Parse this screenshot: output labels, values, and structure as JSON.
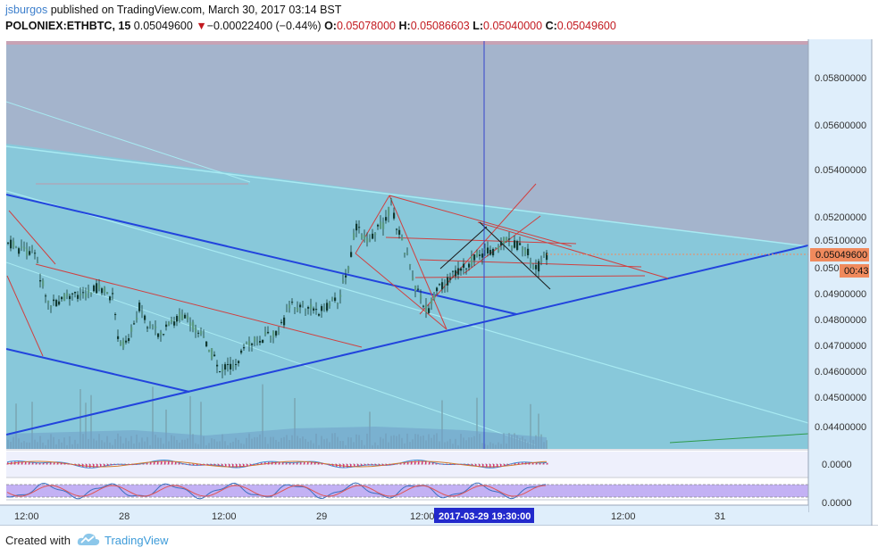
{
  "header": {
    "author": "jsburgos",
    "published_text": " published on TradingView.com, March 30, 2017 03:14 BST",
    "symbol": "POLONIEX:ETHBTC, 15",
    "last": "0.05049600",
    "change": "−0.00022400 (−0.44%)",
    "o_label": "O:",
    "o_value": "0.05078000",
    "h_label": "H:",
    "h_value": "0.05086603",
    "l_label": "L:",
    "l_value": "0.05040000",
    "c_label": "C:",
    "c_value": "0.05049600"
  },
  "price_axis": {
    "ticks": [
      "0.05800000",
      "0.05600000",
      "0.05400000",
      "0.05200000",
      "0.05100000",
      "0.04900000",
      "0.04800000",
      "0.04700000",
      "0.04600000",
      "0.04500000",
      "0.04400000"
    ],
    "partial_tick": "0.050",
    "last_price_label": "0.05049600",
    "countdown": "00:43",
    "osc1_tick": "0.0000",
    "osc2_tick": "0.0000"
  },
  "time_axis": {
    "labels": [
      "12:00",
      "28",
      "12:00",
      "29",
      "12:00",
      "12:00",
      "31"
    ],
    "cursor_label": "2017-03-29 19:30:00"
  },
  "footer": {
    "created_with": "Created with",
    "brand": "TradingView"
  },
  "colors": {
    "background": "#88c8da",
    "upper_zone": "#a4b4cc",
    "candle_up": "#5a9a84",
    "candle_down": "#123a32",
    "trendline_blue": "#2244dd",
    "trendline_red": "#d04040",
    "cursor": "#3344cc",
    "last_price_tag": "#f08a5d"
  }
}
